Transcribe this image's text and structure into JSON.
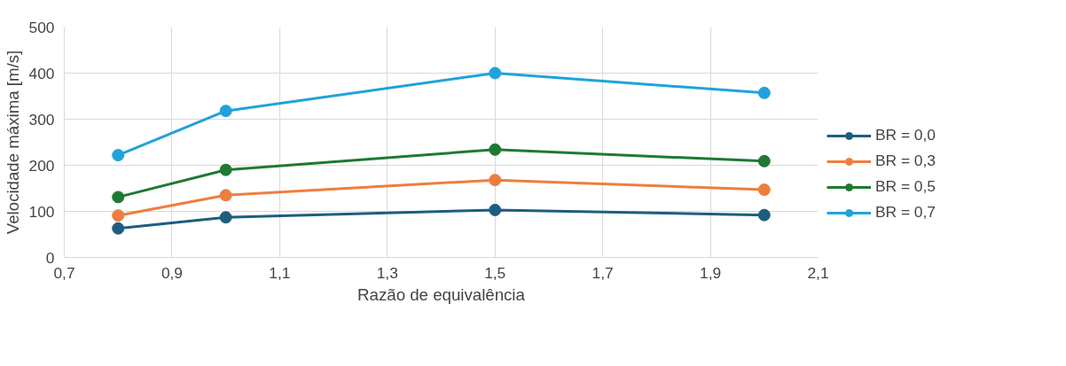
{
  "chart_data": {
    "type": "line",
    "xlabel": "Razão de equivalência",
    "ylabel": "Velocidade máxima [m/s]",
    "x": [
      0.8,
      1.0,
      1.5,
      2.0
    ],
    "series": [
      {
        "name": "BR = 0,0",
        "color": "#1b5e80",
        "values": [
          63,
          87,
          103,
          92
        ]
      },
      {
        "name": "BR = 0,3",
        "color": "#ef7d3c",
        "values": [
          91,
          135,
          168,
          147
        ]
      },
      {
        "name": "BR = 0,5",
        "color": "#1e7a32",
        "values": [
          131,
          190,
          234,
          209
        ]
      },
      {
        "name": "BR = 0,7",
        "color": "#1ea3dc",
        "values": [
          222,
          318,
          400,
          357
        ]
      }
    ],
    "xlim": [
      0.7,
      2.1
    ],
    "xticks": [
      {
        "value": 0.7,
        "label": "0,7"
      },
      {
        "value": 0.9,
        "label": "0,9"
      },
      {
        "value": 1.1,
        "label": "1,1"
      },
      {
        "value": 1.3,
        "label": "1,3"
      },
      {
        "value": 1.5,
        "label": "1,5"
      },
      {
        "value": 1.7,
        "label": "1,7"
      },
      {
        "value": 1.9,
        "label": "1,9"
      },
      {
        "value": 2.1,
        "label": "2,1"
      }
    ],
    "ylim": [
      0,
      500
    ],
    "yticks": [
      0,
      100,
      200,
      300,
      400,
      500
    ],
    "grid": true,
    "legend": "right",
    "marker": "circle",
    "line_style": "solid"
  }
}
